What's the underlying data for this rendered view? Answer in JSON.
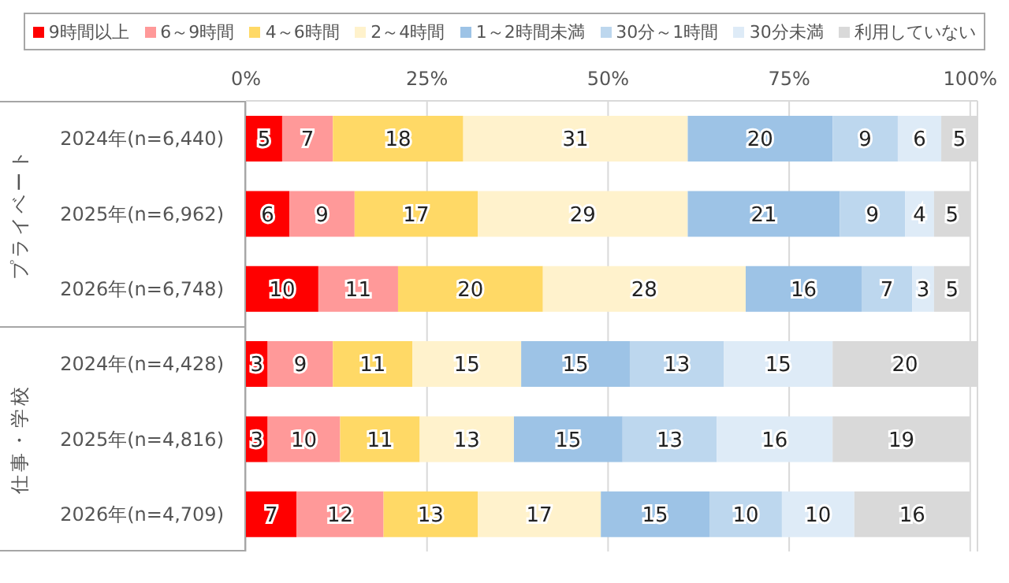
{
  "chart_data": {
    "type": "bar",
    "orientation": "horizontal",
    "stacked": true,
    "data_labels": true,
    "legend": "top",
    "grid": "x",
    "categories": [
      "2024年(n=6,440)",
      "2025年(n=6,962)",
      "2026年(n=6,748)",
      "2024年(n=4,428)",
      "2025年(n=4,816)",
      "2026年(n=4,709)"
    ],
    "series": [
      {
        "name": "9時間以上",
        "color": "#ff0000",
        "values": [
          5,
          6,
          10,
          3,
          3,
          7
        ]
      },
      {
        "name": "6～9時間",
        "color": "#ff9999",
        "values": [
          7,
          9,
          11,
          9,
          10,
          12
        ]
      },
      {
        "name": "4～6時間",
        "color": "#ffd966",
        "values": [
          18,
          17,
          20,
          11,
          11,
          13
        ]
      },
      {
        "name": "2～4時間",
        "color": "#fff2cc",
        "values": [
          31,
          29,
          28,
          15,
          13,
          17
        ]
      },
      {
        "name": "1～2時間未満",
        "color": "#9dc3e6",
        "values": [
          20,
          21,
          16,
          15,
          15,
          15
        ]
      },
      {
        "name": "30分～1時間",
        "color": "#bdd7ee",
        "values": [
          9,
          9,
          7,
          13,
          13,
          10
        ]
      },
      {
        "name": "30分未満",
        "color": "#deebf7",
        "values": [
          6,
          4,
          3,
          15,
          16,
          10
        ]
      },
      {
        "name": "利用していない",
        "color": "#d9d9d9",
        "values": [
          5,
          5,
          5,
          20,
          19,
          16
        ]
      }
    ],
    "xlim": [
      0,
      101
    ],
    "xticks": [
      {
        "value": 0,
        "label": "0%"
      },
      {
        "value": 25,
        "label": "25%"
      },
      {
        "value": 50,
        "label": "50%"
      },
      {
        "value": 75,
        "label": "75%"
      },
      {
        "value": 100,
        "label": "100%"
      }
    ],
    "annotations": [
      "プライベート",
      "仕事・学校"
    ]
  }
}
